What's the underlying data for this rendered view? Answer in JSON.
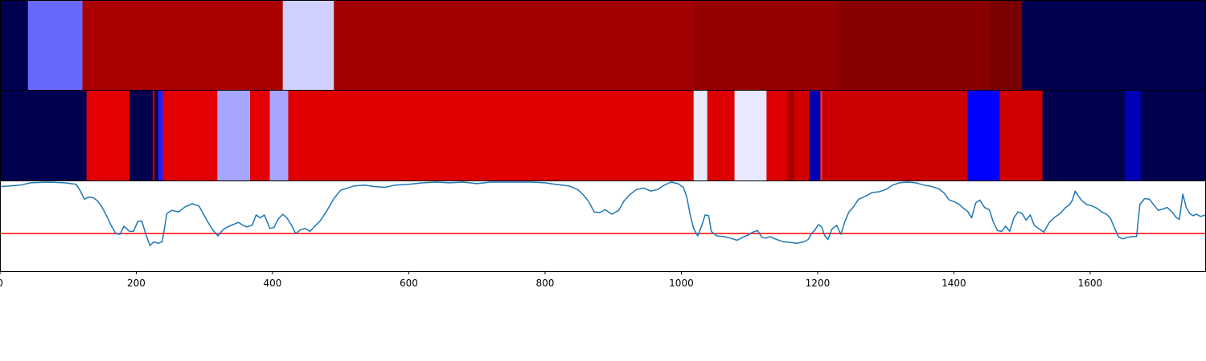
{
  "chart_data": [
    {
      "type": "heatmap",
      "xlim": [
        0,
        1770
      ],
      "segments": [
        {
          "x0": 0,
          "x1": 41,
          "color": "#000050"
        },
        {
          "x0": 41,
          "x1": 121,
          "color": "#6868ff"
        },
        {
          "x0": 121,
          "x1": 415,
          "color": "#ab0000"
        },
        {
          "x0": 415,
          "x1": 490,
          "color": "#d0d0ff"
        },
        {
          "x0": 490,
          "x1": 1018,
          "color": "#a20000"
        },
        {
          "x0": 1018,
          "x1": 1228,
          "color": "#970000"
        },
        {
          "x0": 1228,
          "x1": 1452,
          "color": "#8a0000"
        },
        {
          "x0": 1452,
          "x1": 1500,
          "color": "#7a0000"
        },
        {
          "x0": 1500,
          "x1": 1770,
          "color": "#000050"
        }
      ]
    },
    {
      "type": "heatmap",
      "xlim": [
        0,
        1770
      ],
      "segments": [
        {
          "x0": 0,
          "x1": 127,
          "color": "#000050"
        },
        {
          "x0": 127,
          "x1": 190,
          "color": "#e40000"
        },
        {
          "x0": 190,
          "x1": 224,
          "color": "#000050"
        },
        {
          "x0": 224,
          "x1": 227,
          "color": "#c00000"
        },
        {
          "x0": 227,
          "x1": 232,
          "color": "#000050"
        },
        {
          "x0": 232,
          "x1": 239,
          "color": "#2020ff"
        },
        {
          "x0": 239,
          "x1": 319,
          "color": "#e40000"
        },
        {
          "x0": 319,
          "x1": 367,
          "color": "#a6a6ff"
        },
        {
          "x0": 367,
          "x1": 396,
          "color": "#e40000"
        },
        {
          "x0": 396,
          "x1": 423,
          "color": "#a6a6ff"
        },
        {
          "x0": 423,
          "x1": 1018,
          "color": "#e00000"
        },
        {
          "x0": 1018,
          "x1": 1038,
          "color": "#e8e8ff"
        },
        {
          "x0": 1038,
          "x1": 1078,
          "color": "#dc0000"
        },
        {
          "x0": 1078,
          "x1": 1125,
          "color": "#e8e8ff"
        },
        {
          "x0": 1125,
          "x1": 1155,
          "color": "#dc0000"
        },
        {
          "x0": 1155,
          "x1": 1158,
          "color": "#b80000"
        },
        {
          "x0": 1158,
          "x1": 1165,
          "color": "#a00000"
        },
        {
          "x0": 1165,
          "x1": 1188,
          "color": "#d00000"
        },
        {
          "x0": 1188,
          "x1": 1204,
          "color": "#0000b0"
        },
        {
          "x0": 1204,
          "x1": 1207,
          "color": "#e83030"
        },
        {
          "x0": 1207,
          "x1": 1420,
          "color": "#cc0000"
        },
        {
          "x0": 1420,
          "x1": 1467,
          "color": "#0000ff"
        },
        {
          "x0": 1467,
          "x1": 1530,
          "color": "#d00000"
        },
        {
          "x0": 1530,
          "x1": 1651,
          "color": "#000050"
        },
        {
          "x0": 1651,
          "x1": 1674,
          "color": "#0000b8"
        },
        {
          "x0": 1674,
          "x1": 1770,
          "color": "#000050"
        }
      ]
    },
    {
      "type": "line",
      "xlim": [
        0,
        1770
      ],
      "ylim": [
        0,
        1
      ],
      "threshold": 0.31,
      "threshold_color": "#ff0000",
      "line_color": "#1f77b4",
      "xticks": [
        0,
        200,
        400,
        600,
        800,
        1000,
        1200,
        1400,
        1600
      ],
      "xtick_labels": [
        "0",
        "200",
        "400",
        "600",
        "800",
        "1000",
        "1200",
        "1400",
        "1600"
      ],
      "series": [
        {
          "points": [
            [
              0,
              0.94
            ],
            [
              15,
              0.95
            ],
            [
              30,
              0.96
            ],
            [
              45,
              0.99
            ],
            [
              70,
              1.0
            ],
            [
              95,
              0.99
            ],
            [
              112,
              0.97
            ],
            [
              118,
              0.88
            ],
            [
              124,
              0.77
            ],
            [
              130,
              0.8
            ],
            [
              137,
              0.79
            ],
            [
              143,
              0.75
            ],
            [
              150,
              0.66
            ],
            [
              158,
              0.52
            ],
            [
              163,
              0.42
            ],
            [
              170,
              0.31
            ],
            [
              176,
              0.3
            ],
            [
              182,
              0.41
            ],
            [
              190,
              0.34
            ],
            [
              196,
              0.34
            ],
            [
              202,
              0.47
            ],
            [
              208,
              0.48
            ],
            [
              214,
              0.3
            ],
            [
              220,
              0.15
            ],
            [
              226,
              0.2
            ],
            [
              232,
              0.18
            ],
            [
              238,
              0.2
            ],
            [
              245,
              0.58
            ],
            [
              252,
              0.62
            ],
            [
              262,
              0.6
            ],
            [
              272,
              0.67
            ],
            [
              282,
              0.71
            ],
            [
              292,
              0.68
            ],
            [
              300,
              0.55
            ],
            [
              306,
              0.45
            ],
            [
              313,
              0.35
            ],
            [
              320,
              0.28
            ],
            [
              327,
              0.36
            ],
            [
              334,
              0.4
            ],
            [
              342,
              0.43
            ],
            [
              350,
              0.46
            ],
            [
              357,
              0.42
            ],
            [
              362,
              0.4
            ],
            [
              370,
              0.42
            ],
            [
              376,
              0.56
            ],
            [
              382,
              0.52
            ],
            [
              388,
              0.56
            ],
            [
              396,
              0.38
            ],
            [
              402,
              0.39
            ],
            [
              408,
              0.5
            ],
            [
              415,
              0.57
            ],
            [
              421,
              0.52
            ],
            [
              428,
              0.42
            ],
            [
              434,
              0.31
            ],
            [
              441,
              0.36
            ],
            [
              448,
              0.38
            ],
            [
              455,
              0.34
            ],
            [
              462,
              0.41
            ],
            [
              470,
              0.48
            ],
            [
              480,
              0.62
            ],
            [
              490,
              0.78
            ],
            [
              500,
              0.89
            ],
            [
              510,
              0.92
            ],
            [
              520,
              0.95
            ],
            [
              535,
              0.96
            ],
            [
              550,
              0.94
            ],
            [
              565,
              0.93
            ],
            [
              580,
              0.96
            ],
            [
              600,
              0.97
            ],
            [
              620,
              0.99
            ],
            [
              640,
              1.0
            ],
            [
              660,
              0.99
            ],
            [
              680,
              1.0
            ],
            [
              700,
              0.98
            ],
            [
              720,
              1.0
            ],
            [
              740,
              1.0
            ],
            [
              760,
              1.0
            ],
            [
              780,
              1.0
            ],
            [
              800,
              0.99
            ],
            [
              815,
              0.97
            ],
            [
              835,
              0.95
            ],
            [
              848,
              0.9
            ],
            [
              856,
              0.83
            ],
            [
              864,
              0.74
            ],
            [
              872,
              0.6
            ],
            [
              880,
              0.59
            ],
            [
              888,
              0.63
            ],
            [
              898,
              0.57
            ],
            [
              908,
              0.62
            ],
            [
              916,
              0.75
            ],
            [
              924,
              0.83
            ],
            [
              934,
              0.9
            ],
            [
              945,
              0.92
            ],
            [
              955,
              0.88
            ],
            [
              965,
              0.9
            ],
            [
              975,
              0.96
            ],
            [
              985,
              1.0
            ],
            [
              995,
              0.98
            ],
            [
              1003,
              0.93
            ],
            [
              1008,
              0.8
            ],
            [
              1013,
              0.56
            ],
            [
              1018,
              0.38
            ],
            [
              1024,
              0.28
            ],
            [
              1030,
              0.42
            ],
            [
              1035,
              0.56
            ],
            [
              1040,
              0.55
            ],
            [
              1044,
              0.34
            ],
            [
              1052,
              0.28
            ],
            [
              1062,
              0.27
            ],
            [
              1072,
              0.25
            ],
            [
              1082,
              0.22
            ],
            [
              1090,
              0.26
            ],
            [
              1098,
              0.29
            ],
            [
              1105,
              0.33
            ],
            [
              1112,
              0.35
            ],
            [
              1118,
              0.26
            ],
            [
              1124,
              0.25
            ],
            [
              1130,
              0.27
            ],
            [
              1140,
              0.23
            ],
            [
              1150,
              0.2
            ],
            [
              1160,
              0.19
            ],
            [
              1170,
              0.18
            ],
            [
              1180,
              0.2
            ],
            [
              1186,
              0.23
            ],
            [
              1191,
              0.31
            ],
            [
              1196,
              0.36
            ],
            [
              1201,
              0.43
            ],
            [
              1206,
              0.4
            ],
            [
              1210,
              0.29
            ],
            [
              1215,
              0.23
            ],
            [
              1221,
              0.37
            ],
            [
              1228,
              0.42
            ],
            [
              1234,
              0.3
            ],
            [
              1240,
              0.47
            ],
            [
              1246,
              0.6
            ],
            [
              1252,
              0.66
            ],
            [
              1260,
              0.77
            ],
            [
              1270,
              0.81
            ],
            [
              1280,
              0.86
            ],
            [
              1290,
              0.87
            ],
            [
              1300,
              0.9
            ],
            [
              1310,
              0.96
            ],
            [
              1320,
              0.99
            ],
            [
              1332,
              1.0
            ],
            [
              1344,
              0.99
            ],
            [
              1356,
              0.96
            ],
            [
              1368,
              0.94
            ],
            [
              1378,
              0.91
            ],
            [
              1386,
              0.85
            ],
            [
              1393,
              0.76
            ],
            [
              1400,
              0.74
            ],
            [
              1408,
              0.7
            ],
            [
              1414,
              0.65
            ],
            [
              1420,
              0.61
            ],
            [
              1426,
              0.52
            ],
            [
              1432,
              0.72
            ],
            [
              1438,
              0.76
            ],
            [
              1445,
              0.66
            ],
            [
              1452,
              0.63
            ],
            [
              1458,
              0.46
            ],
            [
              1464,
              0.35
            ],
            [
              1470,
              0.34
            ],
            [
              1476,
              0.41
            ],
            [
              1482,
              0.34
            ],
            [
              1488,
              0.52
            ],
            [
              1494,
              0.6
            ],
            [
              1500,
              0.58
            ],
            [
              1506,
              0.49
            ],
            [
              1512,
              0.56
            ],
            [
              1518,
              0.42
            ],
            [
              1524,
              0.38
            ],
            [
              1532,
              0.33
            ],
            [
              1540,
              0.46
            ],
            [
              1548,
              0.53
            ],
            [
              1556,
              0.58
            ],
            [
              1564,
              0.66
            ],
            [
              1570,
              0.7
            ],
            [
              1574,
              0.76
            ],
            [
              1578,
              0.88
            ],
            [
              1582,
              0.82
            ],
            [
              1588,
              0.75
            ],
            [
              1595,
              0.7
            ],
            [
              1603,
              0.68
            ],
            [
              1610,
              0.65
            ],
            [
              1617,
              0.6
            ],
            [
              1624,
              0.57
            ],
            [
              1630,
              0.51
            ],
            [
              1636,
              0.38
            ],
            [
              1642,
              0.26
            ],
            [
              1648,
              0.24
            ],
            [
              1655,
              0.26
            ],
            [
              1662,
              0.27
            ],
            [
              1668,
              0.27
            ],
            [
              1673,
              0.7
            ],
            [
              1680,
              0.78
            ],
            [
              1687,
              0.77
            ],
            [
              1693,
              0.7
            ],
            [
              1700,
              0.62
            ],
            [
              1707,
              0.64
            ],
            [
              1713,
              0.66
            ],
            [
              1720,
              0.6
            ],
            [
              1726,
              0.53
            ],
            [
              1731,
              0.5
            ],
            [
              1736,
              0.84
            ],
            [
              1741,
              0.66
            ],
            [
              1746,
              0.58
            ],
            [
              1751,
              0.55
            ],
            [
              1756,
              0.57
            ],
            [
              1762,
              0.54
            ],
            [
              1770,
              0.56
            ]
          ]
        }
      ]
    }
  ]
}
